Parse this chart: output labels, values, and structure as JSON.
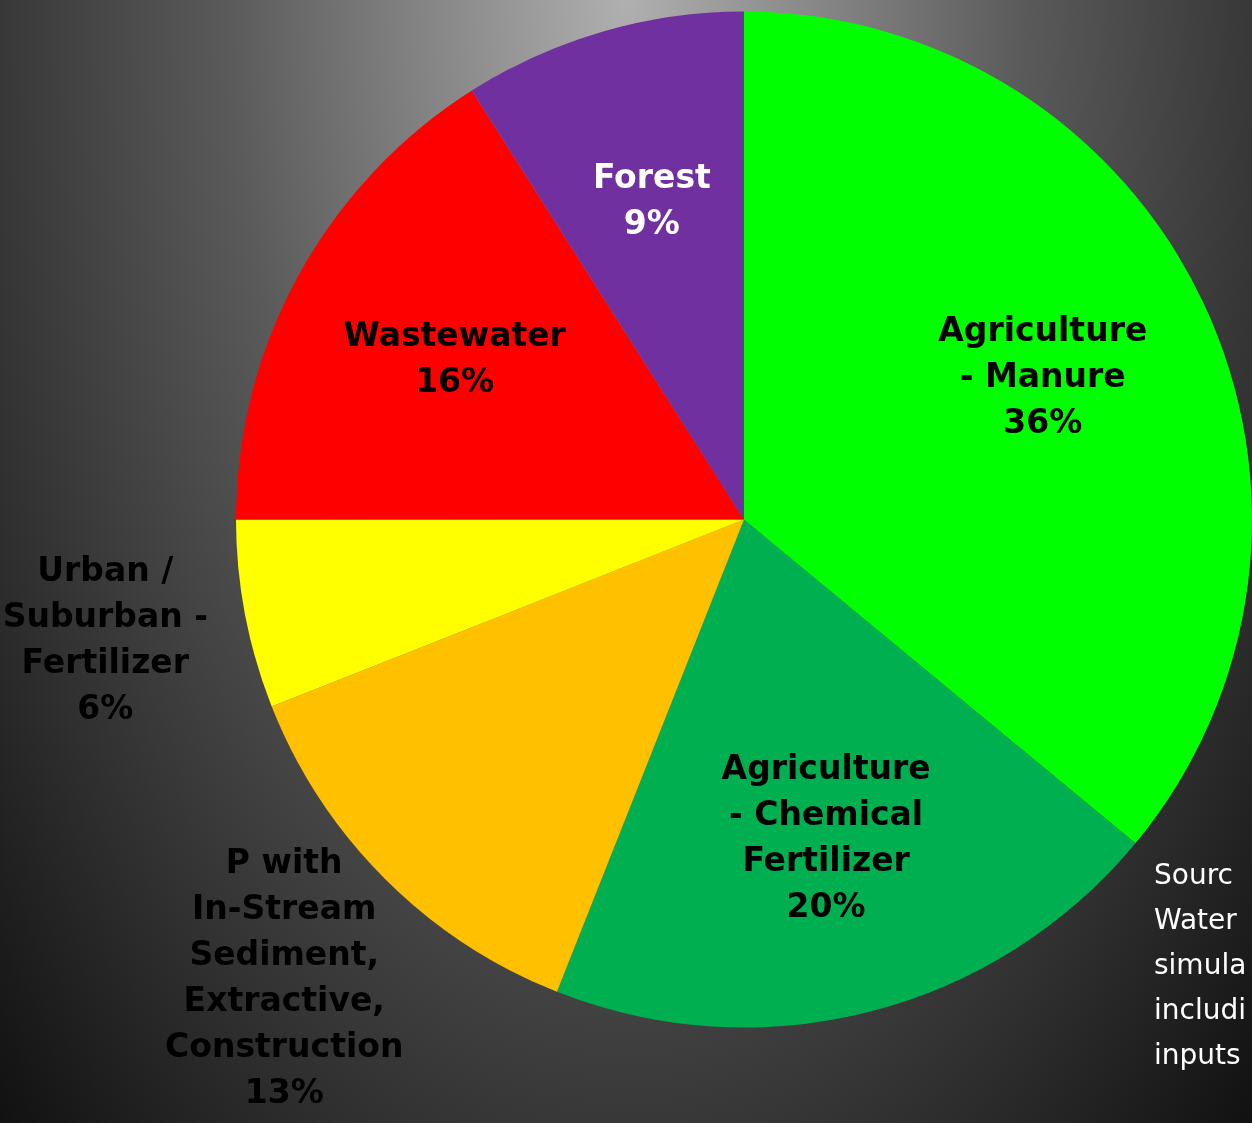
{
  "chart_data": {
    "type": "pie",
    "categories": [
      "Agriculture - Manure",
      "Agriculture - Chemical Fertilizer",
      "P with In-Stream Sediment, Extractive, Construction",
      "Urban / Suburban - Fertilizer",
      "Wastewater",
      "Forest"
    ],
    "values": [
      36,
      20,
      13,
      6,
      16,
      9
    ],
    "colors": [
      "#00ff00",
      "#00b050",
      "#ffc000",
      "#ffff00",
      "#ff0000",
      "#7030a0"
    ],
    "value_labels": [
      "36%",
      "20%",
      "13%",
      "6%",
      "16%",
      "9%"
    ],
    "legend": false,
    "annotations": [
      "Sourc\nWater\nsimula\nincludi\ninputs"
    ]
  }
}
